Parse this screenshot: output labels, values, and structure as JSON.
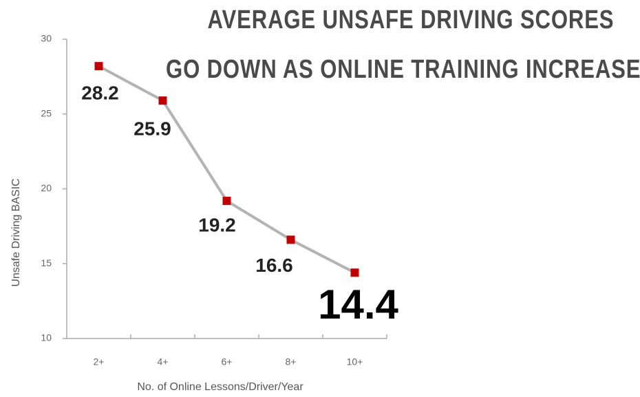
{
  "chart_data": {
    "type": "line",
    "title_lines": [
      "AVERAGE UNSAFE DRIVING SCORES",
      "GO DOWN AS ONLINE TRAINING INCREASES"
    ],
    "x_label": "No. of Online Lessons/Driver/Year",
    "y_label": "Unsafe Driving BASIC",
    "categories": [
      "2+",
      "4+",
      "6+",
      "8+",
      "10+"
    ],
    "series": [
      {
        "name": "Unsafe Driving BASIC",
        "color": "#c00000",
        "line_color": "#b3b3b3",
        "values": [
          28.2,
          25.9,
          19.2,
          16.6,
          14.4
        ]
      }
    ],
    "ylim": [
      10,
      30
    ],
    "yticks": [
      10,
      15,
      20,
      25,
      30
    ],
    "grid": false
  }
}
